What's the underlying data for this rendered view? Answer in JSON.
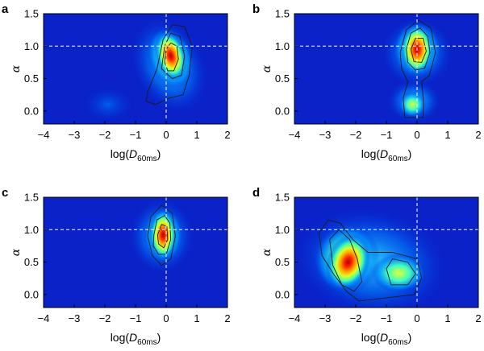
{
  "chart_data": [
    {
      "type": "heatmap",
      "panel": "a",
      "xlabel": "log(D60ms)",
      "ylabel": "α",
      "xlim": [
        -4,
        2
      ],
      "ylim": [
        -0.2,
        1.5
      ],
      "xticks": [
        "−4",
        "−3",
        "−2",
        "−1",
        "0",
        "1",
        "2"
      ],
      "yticks": [
        "0.0",
        "0.5",
        "1.0",
        "1.5"
      ],
      "reference_lines": {
        "x": 0,
        "y": 1.0,
        "style": "dashed",
        "color": "#ffffff"
      },
      "density_peaks": [
        {
          "x": 0.15,
          "y": 0.85,
          "weight": 1.0
        },
        {
          "x": -2.0,
          "y": 0.1,
          "weight": 0.15
        }
      ],
      "contours": "three levels around peak at x≈0.15, α≈0.85"
    },
    {
      "type": "heatmap",
      "panel": "b",
      "xlabel": "log(D60ms)",
      "ylabel": "α",
      "xlim": [
        -4,
        2
      ],
      "ylim": [
        -0.2,
        1.5
      ],
      "xticks": [
        "−4",
        "−3",
        "−2",
        "−1",
        "0",
        "1",
        "2"
      ],
      "yticks": [
        "0.0",
        "0.5",
        "1.0",
        "1.5"
      ],
      "reference_lines": {
        "x": 0,
        "y": 1.0,
        "style": "dashed",
        "color": "#ffffff"
      },
      "density_peaks": [
        {
          "x": 0.0,
          "y": 0.95,
          "weight": 1.0
        },
        {
          "x": -0.1,
          "y": 0.1,
          "weight": 0.3
        }
      ],
      "contours": "three levels around peak at x≈0, α≈0.95 with tail toward α≈0.1"
    },
    {
      "type": "heatmap",
      "panel": "c",
      "xlabel": "log(D60ms)",
      "ylabel": "α",
      "xlim": [
        -4,
        2
      ],
      "ylim": [
        -0.2,
        1.5
      ],
      "xticks": [
        "−4",
        "−3",
        "−2",
        "−1",
        "0",
        "1",
        "2"
      ],
      "yticks": [
        "0.0",
        "0.5",
        "1.0",
        "1.5"
      ],
      "reference_lines": {
        "x": 0,
        "y": 1.0,
        "style": "dashed",
        "color": "#ffffff"
      },
      "density_peaks": [
        {
          "x": -0.1,
          "y": 0.92,
          "weight": 1.0
        }
      ],
      "contours": "three levels around peak at x≈−0.1, α≈0.92"
    },
    {
      "type": "heatmap",
      "panel": "d",
      "xlabel": "log(D60ms)",
      "ylabel": "α",
      "xlim": [
        -4,
        2
      ],
      "ylim": [
        -0.2,
        1.5
      ],
      "xticks": [
        "−4",
        "−3",
        "−2",
        "−1",
        "0",
        "1",
        "2"
      ],
      "yticks": [
        "0.0",
        "0.5",
        "1.0",
        "1.5"
      ],
      "reference_lines": {
        "x": 0,
        "y": 1.0,
        "style": "dashed",
        "color": "#ffffff"
      },
      "density_peaks": [
        {
          "x": -2.2,
          "y": 0.5,
          "weight": 1.0
        },
        {
          "x": -0.6,
          "y": 0.35,
          "weight": 0.45
        }
      ],
      "contours": "broad region from x≈−3 to 0; inner contours around x≈−2.2, α≈0.5 and x≈−0.6, α≈0.35"
    }
  ]
}
